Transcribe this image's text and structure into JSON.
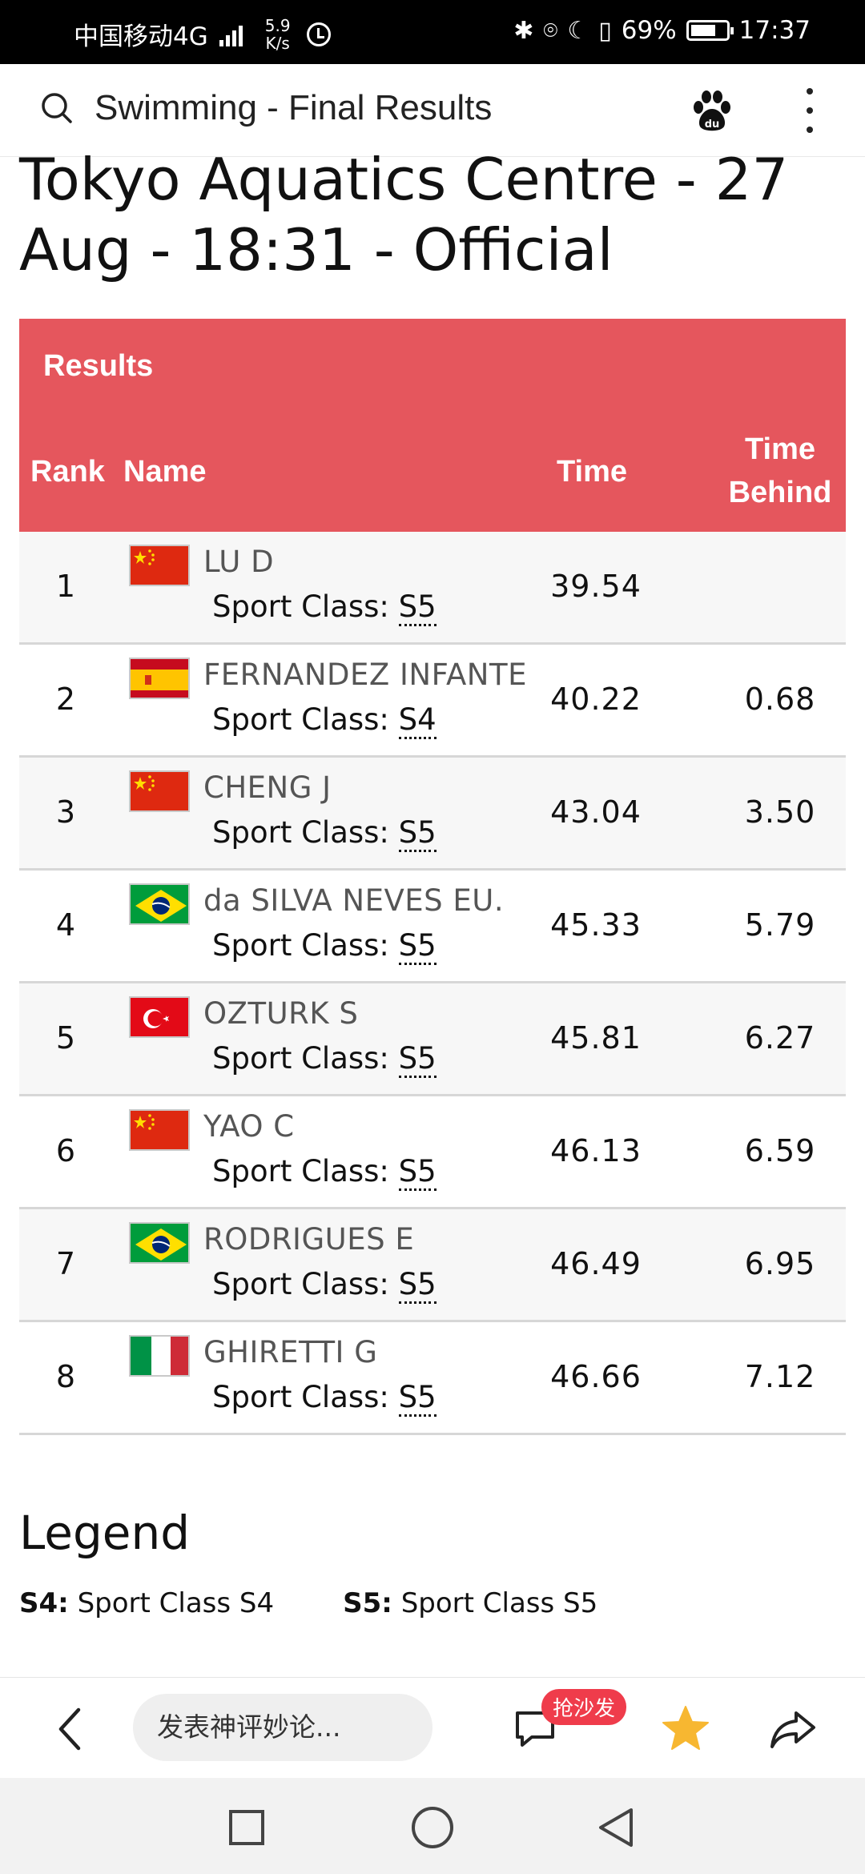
{
  "status_bar": {
    "carrier": "中国移动4G",
    "net_speed_value": "5.9",
    "net_speed_unit": "K/s",
    "battery": "69%",
    "time": "17:37"
  },
  "app_bar": {
    "title": "Swimming - Final Results",
    "icons": [
      "search-icon",
      "baidu-icon",
      "more-icon"
    ]
  },
  "page": {
    "heading": "Tokyo Aquatics Centre - 27 Aug - 18:31 - Official"
  },
  "results": {
    "caption": "Results",
    "headers": {
      "rank": "Rank",
      "name": "Name",
      "time": "Time",
      "time_behind": "Time Behind"
    },
    "sport_class_label": "Sport Class:",
    "rows": [
      {
        "rank": "1",
        "flag": "china",
        "name": "LU D",
        "sport_class": "S5",
        "time": "39.54",
        "time_behind": ""
      },
      {
        "rank": "2",
        "flag": "spain",
        "name": "FERNANDEZ INFANTE",
        "sport_class": "S4",
        "time": "40.22",
        "time_behind": "0.68"
      },
      {
        "rank": "3",
        "flag": "china",
        "name": "CHENG J",
        "sport_class": "S5",
        "time": "43.04",
        "time_behind": "3.50"
      },
      {
        "rank": "4",
        "flag": "brazil",
        "name": "da SILVA NEVES EU.",
        "sport_class": "S5",
        "time": "45.33",
        "time_behind": "5.79"
      },
      {
        "rank": "5",
        "flag": "turkey",
        "name": "OZTURK S",
        "sport_class": "S5",
        "time": "45.81",
        "time_behind": "6.27"
      },
      {
        "rank": "6",
        "flag": "china",
        "name": "YAO C",
        "sport_class": "S5",
        "time": "46.13",
        "time_behind": "6.59"
      },
      {
        "rank": "7",
        "flag": "brazil",
        "name": "RODRIGUES E",
        "sport_class": "S5",
        "time": "46.49",
        "time_behind": "6.95"
      },
      {
        "rank": "8",
        "flag": "italy",
        "name": "GHIRETTI G",
        "sport_class": "S5",
        "time": "46.66",
        "time_behind": "7.12"
      }
    ]
  },
  "legend": {
    "title": "Legend",
    "items": [
      {
        "code": "S4:",
        "text": "Sport Class S4"
      },
      {
        "code": "S5:",
        "text": "Sport Class S5"
      }
    ]
  },
  "bottom_bar": {
    "comment_placeholder": "发表神评妙论...",
    "sofa_badge": "抢沙发",
    "icons": [
      "back-icon",
      "comment-icon",
      "star-icon",
      "share-icon"
    ]
  },
  "colors": {
    "header_red": "#e5565d",
    "badge_red": "#ef3c4b",
    "star_yellow": "#f7b731"
  }
}
